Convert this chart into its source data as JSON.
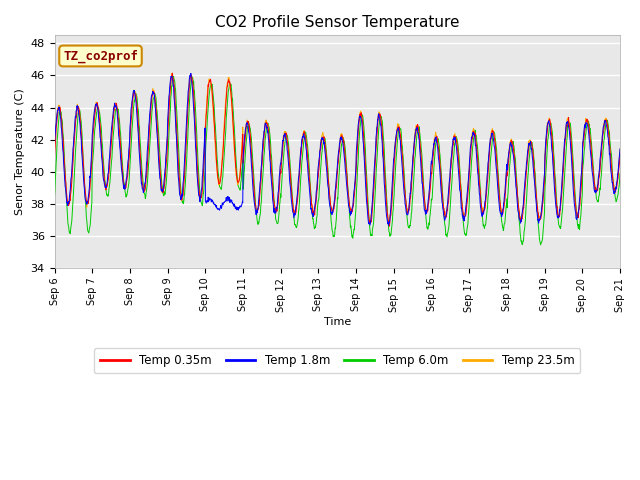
{
  "title": "CO2 Profile Sensor Temperature",
  "ylabel": "Senor Temperature (C)",
  "xlabel": "Time",
  "ylim": [
    34,
    48.5
  ],
  "yticks": [
    34,
    36,
    38,
    40,
    42,
    44,
    46,
    48
  ],
  "xticklabels": [
    "Sep 6",
    "Sep 7",
    "Sep 8",
    "Sep 9",
    "Sep 10",
    "Sep 11",
    "Sep 12",
    "Sep 13",
    "Sep 14",
    "Sep 15",
    "Sep 16",
    "Sep 17",
    "Sep 18",
    "Sep 19",
    "Sep 20",
    "Sep 21"
  ],
  "line_colors": [
    "#ff0000",
    "#0000ff",
    "#00cc00",
    "#ffaa00"
  ],
  "line_labels": [
    "Temp 0.35m",
    "Temp 1.8m",
    "Temp 6.0m",
    "Temp 23.5m"
  ],
  "annotation_text": "TZ_co2prof",
  "annotation_color": "#8b0000",
  "annotation_bg": "#ffffcc",
  "annotation_border": "#cc8800",
  "plot_bg_light": "#e8e8e8",
  "plot_bg_dark": "#d8d8d8",
  "grid_color": "#ffffff",
  "n_days": 15,
  "pts_per_day": 96
}
